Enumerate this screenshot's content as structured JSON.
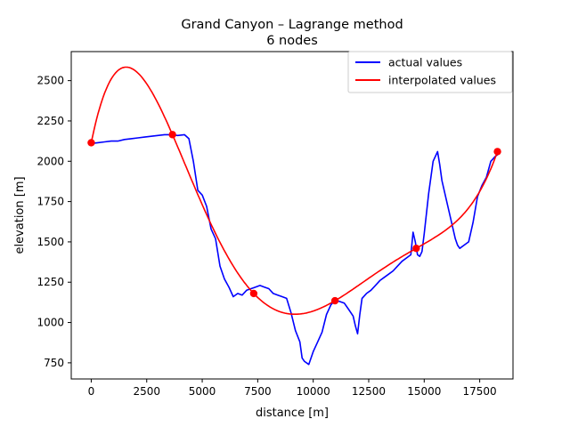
{
  "chart_data": {
    "type": "line",
    "title": "Grand Canyon – Lagrange method",
    "subtitle": "6 nodes",
    "xlabel": "distance [m]",
    "ylabel": "elevation [m]",
    "xlim": [
      -900,
      19000
    ],
    "ylim": [
      650,
      2680
    ],
    "xticks": [
      0,
      2500,
      5000,
      7500,
      10000,
      12500,
      15000,
      17500
    ],
    "yticks": [
      750,
      1000,
      1250,
      1500,
      1750,
      2000,
      2250,
      2500
    ],
    "grid": false,
    "legend_position": "top-right",
    "series": [
      {
        "name": "actual values",
        "color": "#0000ff",
        "x": [
          0,
          300,
          600,
          900,
          1200,
          1500,
          1800,
          2100,
          2400,
          2700,
          3000,
          3300,
          3600,
          3900,
          4200,
          4400,
          4600,
          4800,
          5000,
          5200,
          5400,
          5600,
          5800,
          6000,
          6200,
          6400,
          6600,
          6800,
          7000,
          7200,
          7400,
          7600,
          7800,
          8000,
          8200,
          8400,
          8600,
          8800,
          9000,
          9200,
          9400,
          9500,
          9600,
          9800,
          10000,
          10200,
          10400,
          10600,
          10800,
          11000,
          11200,
          11400,
          11600,
          11800,
          11900,
          12000,
          12100,
          12200,
          12400,
          12600,
          12800,
          13000,
          13200,
          13400,
          13600,
          13800,
          14000,
          14200,
          14400,
          14500,
          14600,
          14700,
          14800,
          14900,
          15000,
          15200,
          15400,
          15600,
          15700,
          15800,
          16000,
          16200,
          16400,
          16500,
          16600,
          16800,
          17000,
          17200,
          17400,
          17600,
          17800,
          18000,
          18200,
          18300
        ],
        "y": [
          2110,
          2115,
          2120,
          2125,
          2125,
          2135,
          2140,
          2145,
          2150,
          2155,
          2160,
          2165,
          2165,
          2160,
          2165,
          2140,
          2000,
          1820,
          1790,
          1720,
          1580,
          1520,
          1350,
          1270,
          1220,
          1160,
          1180,
          1170,
          1200,
          1210,
          1220,
          1230,
          1220,
          1210,
          1180,
          1170,
          1160,
          1150,
          1060,
          950,
          880,
          780,
          760,
          740,
          820,
          880,
          940,
          1050,
          1110,
          1140,
          1130,
          1120,
          1080,
          1040,
          980,
          930,
          1050,
          1150,
          1180,
          1200,
          1230,
          1260,
          1280,
          1300,
          1320,
          1350,
          1380,
          1400,
          1420,
          1560,
          1500,
          1420,
          1410,
          1440,
          1550,
          1800,
          2000,
          2060,
          1980,
          1880,
          1760,
          1640,
          1520,
          1480,
          1460,
          1480,
          1500,
          1620,
          1780,
          1850,
          1900,
          2000,
          2030,
          2040
        ]
      },
      {
        "name": "interpolated values",
        "color": "#ff0000",
        "nodes_x": [
          0,
          3660,
          7320,
          10980,
          14640,
          18300
        ],
        "nodes_y": [
          2115,
          2165,
          1180,
          1135,
          1460,
          2060
        ]
      }
    ]
  }
}
